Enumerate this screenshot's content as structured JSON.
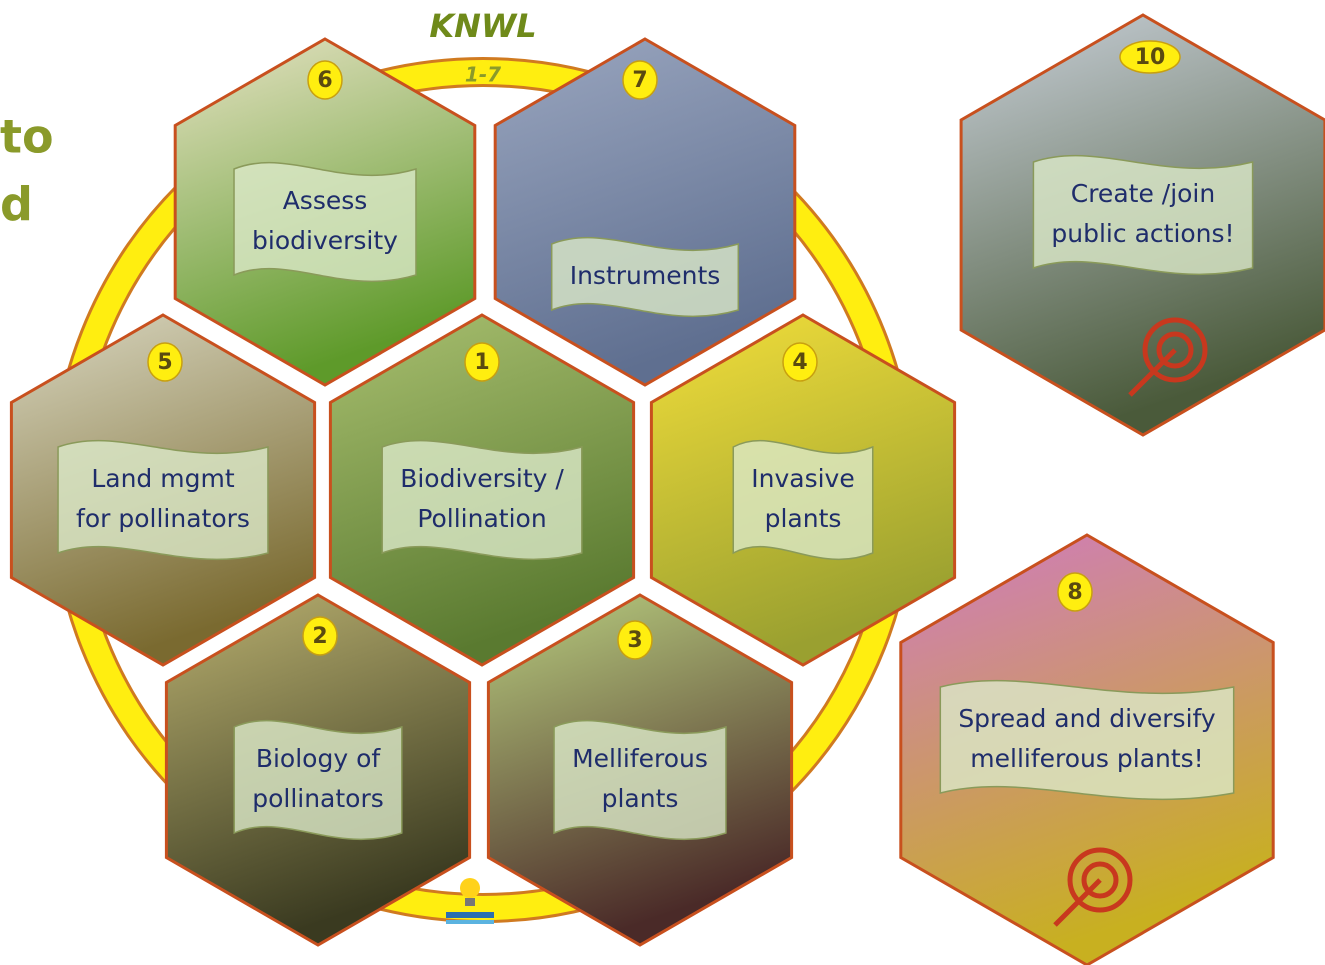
{
  "title": "KNWL",
  "ring_label": "1-7",
  "side_text": [
    "to",
    "d"
  ],
  "hexagons": [
    {
      "number": "6",
      "label": [
        "Assess",
        "biodiversity"
      ]
    },
    {
      "number": "7",
      "label": [
        "Instruments"
      ]
    },
    {
      "number": "5",
      "label": [
        "Land mgmt",
        "for pollinators"
      ]
    },
    {
      "number": "1",
      "label": [
        "Biodiversity /",
        "Pollination"
      ]
    },
    {
      "number": "4",
      "label": [
        "Invasive",
        "plants"
      ]
    },
    {
      "number": "2",
      "label": [
        "Biology of",
        "pollinators"
      ]
    },
    {
      "number": "3",
      "label": [
        "Melliferous",
        "plants"
      ]
    },
    {
      "number": "10",
      "label": [
        "Create /join",
        "public actions!"
      ]
    },
    {
      "number": "8",
      "label": [
        "Spread and diversify",
        "melliferous plants!"
      ]
    }
  ]
}
